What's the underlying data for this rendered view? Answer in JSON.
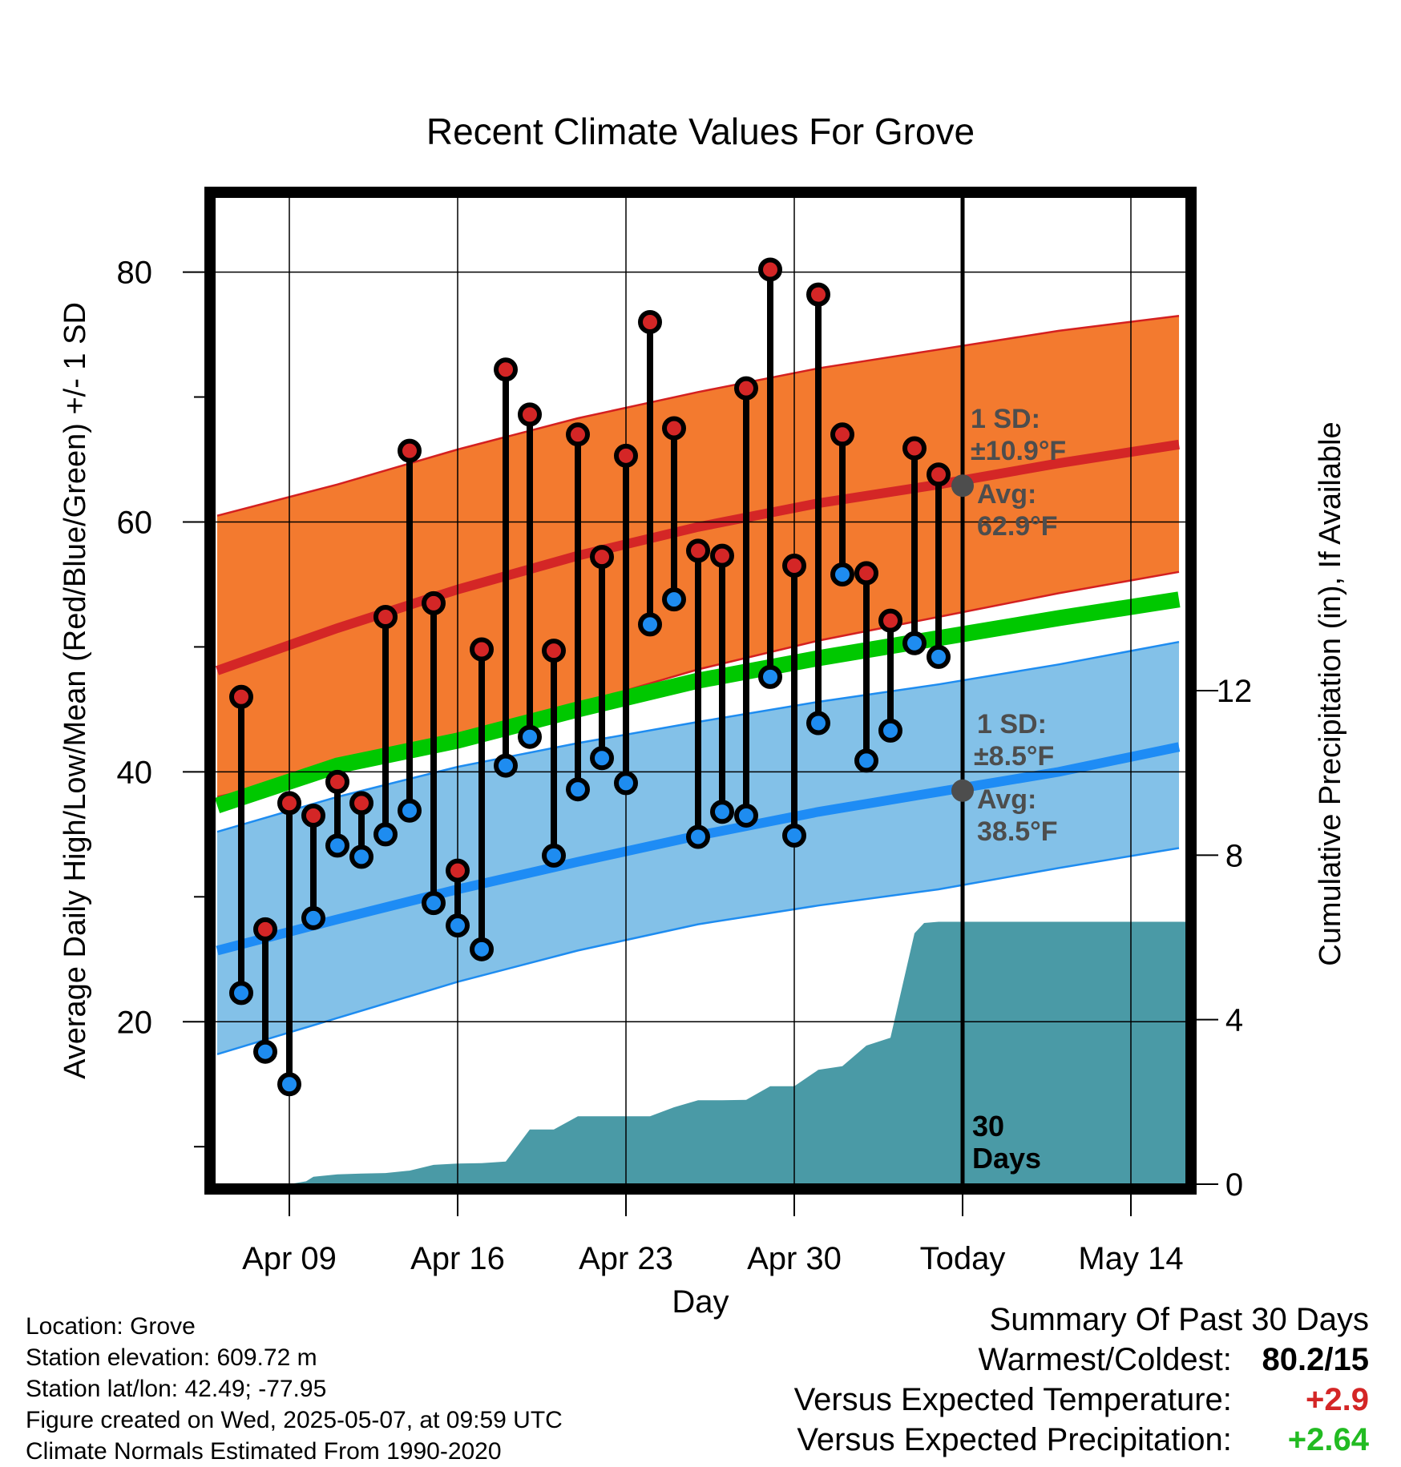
{
  "chart_data": {
    "type": "line",
    "title": "Recent Climate Values For Grove",
    "xlabel": "Day",
    "ylabel": "Average Daily High/Low/Mean (Red/Blue/Green) +/- 1 SD",
    "y2label": "Cumulative Precipitation (in), If Available",
    "x_tick_labels": [
      "Apr 09",
      "Apr 16",
      "Apr 23",
      "Apr 30",
      "Today",
      "May 14"
    ],
    "x_tick_days": [
      9,
      16,
      23,
      30,
      37,
      44
    ],
    "xlim": [
      5.9,
      46.3
    ],
    "ylim": [
      7,
      86
    ],
    "y_ticks": [
      20,
      40,
      60,
      80
    ],
    "y_minor_ticks": [
      10,
      30,
      50,
      70
    ],
    "y2lim": [
      0,
      24
    ],
    "y2_ticks": [
      0,
      4,
      8,
      12
    ],
    "grid": true,
    "today_day": 37,
    "today_label_line1": "30",
    "today_label_line2": "Days",
    "high_normal": {
      "days": [
        6,
        11,
        16,
        21,
        26,
        31,
        36,
        41,
        46
      ],
      "mean": [
        48.1,
        51.5,
        54.6,
        57.3,
        59.6,
        61.5,
        63.0,
        64.7,
        66.2
      ],
      "upper": [
        60.5,
        63.0,
        65.8,
        68.3,
        70.4,
        72.3,
        73.8,
        75.3,
        76.5
      ],
      "lower": [
        38.0,
        40.1,
        42.6,
        45.4,
        48.2,
        50.5,
        52.4,
        54.3,
        56.0
      ]
    },
    "low_normal": {
      "days": [
        6,
        11,
        16,
        21,
        26,
        31,
        36,
        41,
        46
      ],
      "mean": [
        25.7,
        28.2,
        30.6,
        32.8,
        34.9,
        36.8,
        38.4,
        40.0,
        42.0
      ],
      "upper": [
        35.2,
        38.0,
        40.4,
        42.3,
        44.0,
        45.6,
        47.0,
        48.6,
        50.4
      ],
      "lower": [
        17.4,
        20.3,
        23.2,
        25.7,
        27.8,
        29.3,
        30.6,
        32.3,
        33.9
      ]
    },
    "mean_normal": {
      "days": [
        6,
        11,
        16,
        21,
        26,
        31,
        36,
        41,
        46
      ],
      "values": [
        37.3,
        40.5,
        42.5,
        45.0,
        47.3,
        49.1,
        50.7,
        52.3,
        53.8
      ]
    },
    "daily": {
      "days": [
        7,
        8,
        9,
        10,
        11,
        12,
        13,
        14,
        15,
        16,
        17,
        18,
        19,
        20,
        21,
        22,
        23,
        24,
        25,
        26,
        27,
        28,
        29,
        30,
        31,
        32,
        33,
        34,
        35,
        36
      ],
      "high": [
        46,
        27.4,
        37.5,
        36.5,
        39.2,
        37.5,
        52.4,
        65.7,
        53.5,
        32.1,
        49.8,
        72.2,
        68.6,
        49.7,
        67.0,
        57.2,
        65.3,
        76.0,
        67.5,
        57.7,
        57.3,
        70.7,
        80.2,
        56.5,
        78.2,
        67.0,
        55.9,
        52.1,
        65.9,
        63.8
      ],
      "low": [
        22.3,
        17.6,
        15,
        28.3,
        34.1,
        33.2,
        35.0,
        36.9,
        29.5,
        27.7,
        25.8,
        40.5,
        42.8,
        33.3,
        38.6,
        41.1,
        39.1,
        51.8,
        53.8,
        34.8,
        36.8,
        36.5,
        47.6,
        34.9,
        43.9,
        55.8,
        40.9,
        43.3,
        50.3,
        49.2
      ]
    },
    "precipitation": {
      "days": [
        6,
        7,
        8,
        9,
        9.7,
        10,
        11,
        12,
        13,
        14,
        15,
        16,
        17,
        18,
        19,
        20,
        21,
        22,
        23,
        24,
        25,
        26,
        27,
        28,
        29,
        30,
        31,
        32,
        33,
        34,
        35,
        35.4,
        36,
        37,
        46.3
      ],
      "values": [
        0,
        0,
        0,
        0,
        0.07,
        0.18,
        0.24,
        0.26,
        0.27,
        0.33,
        0.47,
        0.5,
        0.51,
        0.55,
        1.33,
        1.33,
        1.65,
        1.65,
        1.65,
        1.65,
        1.87,
        2.04,
        2.04,
        2.05,
        2.38,
        2.38,
        2.78,
        2.87,
        3.37,
        3.56,
        6.1,
        6.35,
        6.38,
        6.38,
        6.38
      ]
    },
    "annotations": {
      "high": {
        "day": 37,
        "value": 62.9,
        "sd_label": "1 SD:",
        "sd_value": "±10.9°F",
        "avg_label": "Avg:",
        "avg_value": "62.9°F"
      },
      "low": {
        "day": 37,
        "value": 38.5,
        "sd_label": "1 SD:",
        "sd_value": "±8.5°F",
        "avg_label": "Avg:",
        "avg_value": "38.5°F"
      }
    },
    "colors": {
      "high_band": "#f37a2f",
      "high_band_edge": "#d42020",
      "high_mean": "#d42626",
      "low_band": "#83c1e8",
      "low_band_edge": "#1e8cf0",
      "low_mean": "#1e8cf5",
      "mean_line": "#00c800",
      "precip": "#4a9aa6",
      "high_dot": "#d42626",
      "low_dot": "#1e8cf0",
      "annotation": "#4d4d4d"
    }
  },
  "info": {
    "location": "Location: Grove",
    "elevation": "Station elevation: 609.72 m",
    "latlon": "Station lat/lon: 42.49; -77.95",
    "created": "Figure created on Wed, 2025-05-07, at 09:59 UTC",
    "normals": "Climate Normals Estimated From 1990-2020"
  },
  "summary": {
    "title": "Summary Of Past 30 Days",
    "warm_cold_label": "Warmest/Coldest:",
    "warm_cold_value": "80.2/15",
    "temp_label": "Versus Expected Temperature:",
    "temp_value": "+2.9",
    "temp_color": "#d42626",
    "precip_label": "Versus Expected Precipitation:",
    "precip_value": "+2.64",
    "precip_color": "#22bb22"
  }
}
